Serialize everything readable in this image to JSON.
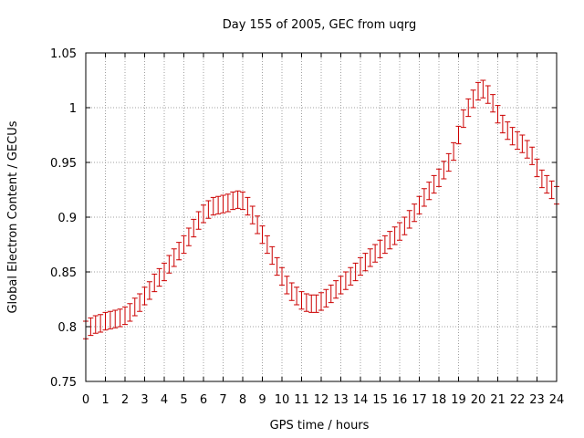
{
  "chart_data": {
    "type": "line",
    "title": "Day 155 of 2005, GEC from uqrg",
    "xlabel": "GPS time / hours",
    "ylabel": "Global Electron Content / GECUs",
    "xlim": [
      0,
      24
    ],
    "ylim": [
      0.75,
      1.05
    ],
    "xticks": [
      0,
      1,
      2,
      3,
      4,
      5,
      6,
      7,
      8,
      9,
      10,
      11,
      12,
      13,
      14,
      15,
      16,
      17,
      18,
      19,
      20,
      21,
      22,
      23,
      24
    ],
    "yticks": [
      0.75,
      0.8,
      0.85,
      0.9,
      0.95,
      1,
      1.05
    ],
    "ytick_labels": [
      "0.75",
      "0.8",
      "0.85",
      "0.9",
      "0.95",
      "1",
      "1.05"
    ],
    "grid": true,
    "series_color": "#cc0000",
    "error": 0.008,
    "series": [
      {
        "x": [
          0,
          0.25,
          0.5,
          0.75,
          1,
          1.25,
          1.5,
          1.75,
          2,
          2.25,
          2.5,
          2.75,
          3,
          3.25,
          3.5,
          3.75,
          4,
          4.25,
          4.5,
          4.75,
          5,
          5.25,
          5.5,
          5.75,
          6,
          6.25,
          6.5,
          6.75,
          7,
          7.25,
          7.5,
          7.75,
          8,
          8.25,
          8.5,
          8.75,
          9,
          9.25,
          9.5,
          9.75,
          10,
          10.25,
          10.5,
          10.75,
          11,
          11.25,
          11.5,
          11.75,
          12,
          12.25,
          12.5,
          12.75,
          13,
          13.25,
          13.5,
          13.75,
          14,
          14.25,
          14.5,
          14.75,
          15,
          15.25,
          15.5,
          15.75,
          16,
          16.25,
          16.5,
          16.75,
          17,
          17.25,
          17.5,
          17.75,
          18,
          18.25,
          18.5,
          18.75,
          19,
          19.25,
          19.5,
          19.75,
          20,
          20.25,
          20.5,
          20.75,
          21,
          21.25,
          21.5,
          21.75,
          22,
          22.25,
          22.5,
          22.75,
          23,
          23.25,
          23.5,
          23.75,
          24
        ],
        "y": [
          0.797,
          0.8,
          0.802,
          0.803,
          0.805,
          0.806,
          0.807,
          0.808,
          0.81,
          0.813,
          0.818,
          0.822,
          0.828,
          0.833,
          0.84,
          0.845,
          0.85,
          0.857,
          0.863,
          0.869,
          0.875,
          0.882,
          0.89,
          0.897,
          0.903,
          0.907,
          0.91,
          0.911,
          0.912,
          0.913,
          0.915,
          0.916,
          0.915,
          0.91,
          0.902,
          0.893,
          0.884,
          0.875,
          0.865,
          0.855,
          0.846,
          0.838,
          0.832,
          0.828,
          0.824,
          0.822,
          0.821,
          0.821,
          0.823,
          0.826,
          0.83,
          0.834,
          0.838,
          0.842,
          0.846,
          0.85,
          0.855,
          0.859,
          0.863,
          0.867,
          0.871,
          0.875,
          0.879,
          0.883,
          0.887,
          0.892,
          0.898,
          0.904,
          0.911,
          0.918,
          0.924,
          0.93,
          0.936,
          0.943,
          0.95,
          0.96,
          0.975,
          0.99,
          1.0,
          1.008,
          1.015,
          1.017,
          1.012,
          1.004,
          0.994,
          0.985,
          0.979,
          0.974,
          0.97,
          0.967,
          0.962,
          0.956,
          0.945,
          0.935,
          0.93,
          0.925,
          0.92
        ]
      }
    ]
  }
}
